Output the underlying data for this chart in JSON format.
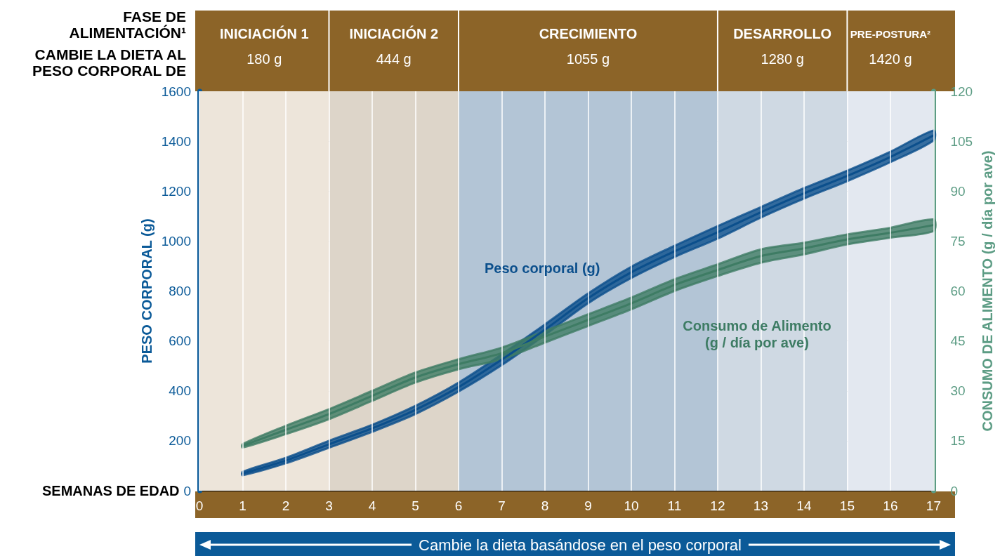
{
  "chart_data": {
    "type": "line",
    "xlabel": "SEMANAS DE EDAD",
    "ylabel": "PESO CORPORAL (g)",
    "y2label": "CONSUMO DE ALIMENTO (g / día por ave)",
    "annotations": [
      "FASE DE\nALIMENTACIÓN¹",
      "CAMBIE LA DIETA AL\nPESO CORPORAL DE",
      "Cambie la dieta basándose en el peso corporal"
    ],
    "x": [
      1,
      2,
      3,
      4,
      5,
      6,
      7,
      8,
      9,
      10,
      11,
      12,
      13,
      14,
      15,
      16,
      17
    ],
    "xlim": [
      0,
      17
    ],
    "xticks": [
      0,
      1,
      2,
      3,
      4,
      5,
      6,
      7,
      8,
      9,
      10,
      11,
      12,
      13,
      14,
      15,
      16,
      17
    ],
    "ylim": [
      0,
      1600
    ],
    "yticks": [
      0,
      200,
      400,
      600,
      800,
      1000,
      1200,
      1400,
      1600
    ],
    "y2lim": [
      0,
      120
    ],
    "y2ticks": [
      0,
      15,
      30,
      45,
      60,
      75,
      90,
      105,
      120
    ],
    "grid": true,
    "legend": false,
    "marker": "none",
    "line_style": "solid",
    "series": [
      {
        "name": "Peso corporal (g)",
        "color": "#0b4f8c",
        "values": [
          69,
          121,
          186,
          250,
          324,
          415,
          525,
          645,
          771,
          875,
          959,
          1035,
          1115,
          1191,
          1261,
          1337,
          1423
        ],
        "lower": [
          62,
          110,
          172,
          236,
          307,
          397,
          503,
          624,
          751,
          852,
          936,
          1010,
          1094,
          1170,
          1240,
          1316,
          1403
        ],
        "upper": [
          76,
          132,
          200,
          264,
          340,
          433,
          546,
          666,
          790,
          897,
          981,
          1060,
          1136,
          1212,
          1282,
          1358,
          1443
        ]
      },
      {
        "name": "Consumo de Alimento\n(g / día por ave)",
        "color": "#3e7c64",
        "axis": "y2",
        "values": [
          13.5,
          18.3,
          23,
          28.5,
          34,
          38,
          41.3,
          46.3,
          51.3,
          56.3,
          61.8,
          66.3,
          70.5,
          72.8,
          75.5,
          77.5,
          79.8
        ],
        "lower": [
          13,
          17,
          21.5,
          27,
          32.5,
          36.5,
          39.5,
          44.5,
          49.5,
          54.5,
          60,
          64.5,
          68.5,
          71,
          74,
          76,
          78
        ],
        "upper": [
          14,
          19.5,
          24.5,
          30,
          35.5,
          39.5,
          43,
          48,
          53,
          58,
          63.5,
          68,
          72.5,
          74.5,
          77,
          79,
          81.5
        ]
      }
    ],
    "bands": [
      {
        "axis": "x",
        "from": 0,
        "to": 3,
        "label": "INICIACIÓN 1\n180 g",
        "color": "#ede5da"
      },
      {
        "axis": "x",
        "from": 3,
        "to": 6,
        "label": "INICIACIÓN 2\n444 g",
        "color": "#ddd5c9"
      },
      {
        "axis": "x",
        "from": 6,
        "to": 12,
        "label": "CRECIMIENTO\n1055 g",
        "color": "#b3c5d6"
      },
      {
        "axis": "x",
        "from": 12,
        "to": 15,
        "label": "DESARROLLO\n1280 g",
        "color": "#cfd9e3"
      },
      {
        "axis": "x",
        "from": 15,
        "to": 17,
        "label": "PRE-POSTURA²\n1420 g",
        "color": "#e3e8f0"
      }
    ]
  }
}
